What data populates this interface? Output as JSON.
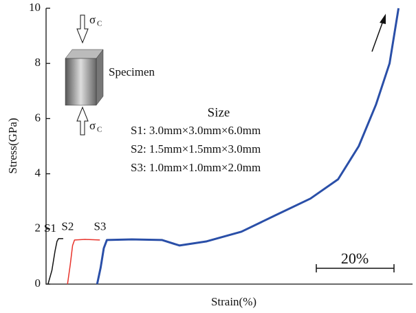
{
  "chart_data": {
    "type": "line",
    "x_label": "Strain(%)",
    "y_label": "Stress(GPa)",
    "xlim": [
      0,
      94
    ],
    "ylim": [
      0,
      10
    ],
    "yticks": [
      0,
      2,
      4,
      6,
      8,
      10
    ],
    "series": [
      {
        "name": "S1",
        "color": "#111111",
        "x": [
          0.5,
          1.5,
          2.3,
          2.8,
          3.2,
          4.4
        ],
        "values": [
          0,
          0.5,
          1.2,
          1.55,
          1.65,
          1.65
        ]
      },
      {
        "name": "S2",
        "color": "#e8322a",
        "x": [
          5.5,
          6.2,
          6.8,
          7.3,
          10,
          13.8
        ],
        "values": [
          0,
          0.7,
          1.4,
          1.6,
          1.62,
          1.6
        ]
      },
      {
        "name": "S3",
        "color": "#2a4fa8",
        "x": [
          13.1,
          14,
          14.8,
          15.6,
          22,
          29.7,
          34.2,
          41.2,
          50.1,
          58.9,
          67.8,
          74.9,
          80.2,
          84.6,
          88.1,
          90.4
        ],
        "values": [
          0,
          0.6,
          1.3,
          1.6,
          1.62,
          1.6,
          1.4,
          1.55,
          1.9,
          2.5,
          3.1,
          3.8,
          5,
          6.5,
          8,
          10
        ]
      }
    ],
    "annotations": {
      "size_title": "Size",
      "size_lines": [
        "S1: 3.0mm×3.0mm×6.0mm",
        "S2: 1.5mm×1.5mm×3.0mm",
        "S3: 1.0mm×1.0mm×2.0mm"
      ],
      "specimen": "Specimen",
      "sigma": "σ",
      "sigma_sub": "C",
      "scale_bar": "20%"
    }
  }
}
